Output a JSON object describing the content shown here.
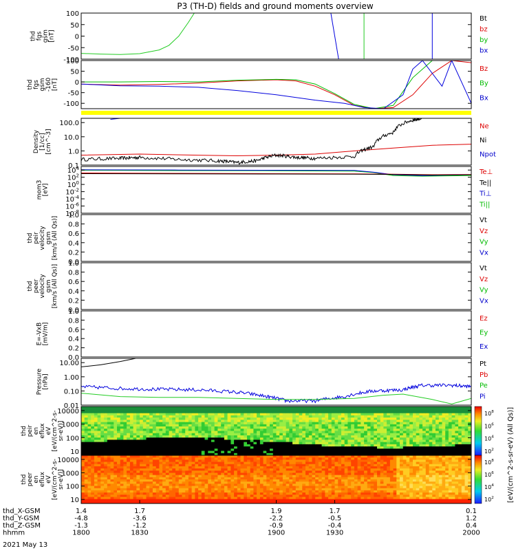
{
  "page": {
    "title": "P3 (TH-D) fields and ground moments overview",
    "date_label": "2021 May 13"
  },
  "chart_data": [
    {
      "type": "line",
      "ylabel": [
        "thd",
        "fgs",
        "gsm",
        "[nT]"
      ],
      "ylim": [
        -100,
        100
      ],
      "yticks": [
        "100",
        "50",
        "0",
        "-50",
        "-100"
      ],
      "legend": [
        {
          "name": "Bt",
          "color": "#000000"
        },
        {
          "name": "bz",
          "color": "#dd0000"
        },
        {
          "name": "by",
          "color": "#00bb00"
        },
        {
          "name": "bx",
          "color": "#0000cc"
        }
      ],
      "series": [
        {
          "name": "by",
          "color": "#22cc22",
          "points": [
            [
              1800,
              -75
            ],
            [
              1810,
              -78
            ],
            [
              1820,
              -80
            ],
            [
              1830,
              -76
            ],
            [
              1840,
              -60
            ],
            [
              1845,
              -40
            ],
            [
              1850,
              0
            ],
            [
              1855,
              60
            ],
            [
              1858,
              100
            ],
            [
              1945,
              100
            ],
            [
              1945,
              -100
            ]
          ]
        },
        {
          "name": "bx",
          "color": "#0000dd",
          "points": [
            [
              1928,
              100
            ],
            [
              1932,
              -100
            ],
            [
              1980,
              -100
            ],
            [
              1980,
              100
            ]
          ]
        }
      ]
    },
    {
      "type": "line",
      "ylabel": [
        "thd",
        "fgs",
        "gsm",
        "-160",
        "[nT]"
      ],
      "ylim": [
        -125,
        100
      ],
      "yticks": [
        "100",
        "50",
        "0",
        "-50",
        "-100"
      ],
      "legend": [
        {
          "name": "Bz",
          "color": "#dd0000"
        },
        {
          "name": "By",
          "color": "#00bb00"
        },
        {
          "name": "Bx",
          "color": "#0000cc"
        }
      ],
      "series": [
        {
          "name": "Bz",
          "color": "#dd0000",
          "points": [
            [
              1800,
              -10
            ],
            [
              1820,
              -15
            ],
            [
              1840,
              -12
            ],
            [
              1860,
              -5
            ],
            [
              1880,
              5
            ],
            [
              1900,
              10
            ],
            [
              1910,
              5
            ],
            [
              1920,
              -20
            ],
            [
              1930,
              -60
            ],
            [
              1940,
              -110
            ],
            [
              1950,
              -125
            ],
            [
              1960,
              -120
            ],
            [
              1970,
              -60
            ],
            [
              1980,
              40
            ],
            [
              1990,
              100
            ],
            [
              2000,
              90
            ]
          ]
        },
        {
          "name": "By",
          "color": "#00bb00",
          "points": [
            [
              1800,
              0
            ],
            [
              1820,
              0
            ],
            [
              1840,
              2
            ],
            [
              1860,
              0
            ],
            [
              1880,
              8
            ],
            [
              1900,
              12
            ],
            [
              1910,
              10
            ],
            [
              1920,
              -10
            ],
            [
              1930,
              -55
            ],
            [
              1940,
              -105
            ],
            [
              1950,
              -125
            ],
            [
              1960,
              -110
            ],
            [
              1970,
              20
            ],
            [
              1980,
              100
            ],
            [
              1990,
              100
            ],
            [
              2000,
              100
            ]
          ]
        },
        {
          "name": "Bx",
          "color": "#0000dd",
          "points": [
            [
              1800,
              -10
            ],
            [
              1820,
              -18
            ],
            [
              1840,
              -20
            ],
            [
              1860,
              -25
            ],
            [
              1880,
              -40
            ],
            [
              1900,
              -60
            ],
            [
              1920,
              -85
            ],
            [
              1935,
              -100
            ],
            [
              1945,
              -120
            ],
            [
              1955,
              -125
            ],
            [
              1965,
              -60
            ],
            [
              1970,
              60
            ],
            [
              1975,
              100
            ],
            [
              1985,
              -20
            ],
            [
              1990,
              100
            ],
            [
              2000,
              -100
            ]
          ]
        }
      ],
      "flag_bar_color": "#ffff00"
    },
    {
      "type": "line",
      "ylabel": [
        "Density",
        "[1/cc]",
        "[cm^-3]"
      ],
      "scale": "log",
      "ylim": [
        0.1,
        200
      ],
      "yticks": [
        "100.0",
        "10.0",
        "1.0",
        "0.1"
      ],
      "legend": [
        {
          "name": "Ne",
          "color": "#dd0000"
        },
        {
          "name": "Ni",
          "color": "#000000"
        },
        {
          "name": "Npot",
          "color": "#0000cc"
        }
      ],
      "series": [
        {
          "name": "Ne",
          "color": "#dd0000",
          "points": [
            [
              1800,
              0.5
            ],
            [
              1830,
              0.6
            ],
            [
              1860,
              0.5
            ],
            [
              1880,
              0.45
            ],
            [
              1900,
              0.5
            ],
            [
              1920,
              0.6
            ],
            [
              1940,
              1.0
            ],
            [
              1960,
              1.6
            ],
            [
              1980,
              2.5
            ],
            [
              2000,
              3.0
            ]
          ]
        },
        {
          "name": "Ni",
          "color": "#000000",
          "noisy": true,
          "points": [
            [
              1800,
              0.25
            ],
            [
              1820,
              0.3
            ],
            [
              1830,
              0.35
            ],
            [
              1850,
              0.25
            ],
            [
              1870,
              0.2
            ],
            [
              1880,
              0.15
            ],
            [
              1890,
              0.2
            ],
            [
              1900,
              0.5
            ],
            [
              1910,
              0.35
            ],
            [
              1920,
              0.3
            ],
            [
              1940,
              0.4
            ],
            [
              1950,
              2.0
            ],
            [
              1960,
              20
            ],
            [
              1970,
              150
            ],
            [
              1975,
              200
            ]
          ]
        },
        {
          "name": "Npot",
          "color": "#0000dd",
          "points": [
            [
              1815,
              170
            ],
            [
              1820,
              200
            ]
          ]
        }
      ]
    },
    {
      "type": "line",
      "ylabel": [
        "mom3",
        "[eV]"
      ],
      "scale": "log",
      "ylim": [
        1e-08,
        100000.0
      ],
      "yticks": [
        "10^4",
        "10^2",
        "10^0",
        "10^-2",
        "10^-4",
        "10^-6",
        "10^-8"
      ],
      "legend": [
        {
          "name": "Te⊥",
          "color": "#dd0000"
        },
        {
          "name": "Te||",
          "color": "#000000"
        },
        {
          "name": "Ti⊥",
          "color": "#0000cc"
        },
        {
          "name": "Ti||",
          "color": "#00bb00"
        }
      ],
      "series": [
        {
          "name": "Ti||",
          "color": "#00bb00",
          "points": [
            [
              1800,
              9000
            ],
            [
              1850,
              7000
            ],
            [
              1900,
              6500
            ],
            [
              1940,
              5000
            ],
            [
              1950,
              2000
            ],
            [
              1960,
              300
            ],
            [
              1975,
              200
            ],
            [
              2000,
              300
            ]
          ]
        },
        {
          "name": "Ti⊥",
          "color": "#0000dd",
          "points": [
            [
              1800,
              12000
            ],
            [
              1850,
              10000
            ],
            [
              1900,
              9000
            ],
            [
              1940,
              8000
            ],
            [
              1950,
              2500
            ],
            [
              1960,
              500
            ],
            [
              1975,
              300
            ],
            [
              2000,
              500
            ]
          ]
        },
        {
          "name": "Te⊥",
          "color": "#dd0000",
          "points": [
            [
              1800,
              1500
            ],
            [
              1850,
              1200
            ],
            [
              1900,
              1000
            ],
            [
              1940,
              900
            ],
            [
              1960,
              700
            ],
            [
              1980,
              500
            ],
            [
              2000,
              600
            ]
          ]
        },
        {
          "name": "Te||",
          "color": "#000000",
          "points": [
            [
              1800,
              1000
            ],
            [
              1850,
              900
            ],
            [
              1900,
              800
            ],
            [
              1940,
              700
            ],
            [
              1960,
              600
            ],
            [
              1980,
              400
            ],
            [
              2000,
              500
            ]
          ]
        }
      ]
    },
    {
      "type": "line",
      "ylabel": [
        "thd",
        "peir",
        "velocity",
        "gsm",
        "[km/s (All Qs)]"
      ],
      "ylim": [
        0,
        1
      ],
      "yticks": [
        "1.0",
        "0.8",
        "0.6",
        "0.4",
        "0.2",
        "0.0"
      ],
      "legend": [
        {
          "name": "Vt",
          "color": "#000000"
        },
        {
          "name": "Vz",
          "color": "#dd0000"
        },
        {
          "name": "Vy",
          "color": "#00bb00"
        },
        {
          "name": "Vx",
          "color": "#0000cc"
        }
      ],
      "series": []
    },
    {
      "type": "line",
      "ylabel": [
        "thd",
        "peer",
        "velocity",
        "gsm",
        "[km/s (All Qs)]"
      ],
      "ylim": [
        0,
        1
      ],
      "yticks": [
        "1.0",
        "0.8",
        "0.6",
        "0.4",
        "0.2",
        "0.0"
      ],
      "legend": [
        {
          "name": "Vt",
          "color": "#000000"
        },
        {
          "name": "Vz",
          "color": "#dd0000"
        },
        {
          "name": "Vy",
          "color": "#00bb00"
        },
        {
          "name": "Vx",
          "color": "#0000cc"
        }
      ],
      "series": []
    },
    {
      "type": "line",
      "ylabel": [
        "E=-VxB",
        "[mV/m]"
      ],
      "ylim": [
        0,
        1
      ],
      "yticks": [
        "1.0",
        "0.8",
        "0.6",
        "0.4",
        "0.2",
        "0.0"
      ],
      "legend": [
        {
          "name": "Ez",
          "color": "#dd0000"
        },
        {
          "name": "Ey",
          "color": "#00bb00"
        },
        {
          "name": "Ex",
          "color": "#0000cc"
        }
      ],
      "series": []
    },
    {
      "type": "line",
      "ylabel": [
        "Pressure",
        "[nPa]"
      ],
      "scale": "log",
      "ylim": [
        0.01,
        20
      ],
      "yticks": [
        "10.00",
        "1.00",
        "0.10",
        "0.01"
      ],
      "legend": [
        {
          "name": "Pt",
          "color": "#000000"
        },
        {
          "name": "Pb",
          "color": "#dd0000"
        },
        {
          "name": "Pe",
          "color": "#00bb00"
        },
        {
          "name": "Pi",
          "color": "#0000cc"
        }
      ],
      "series": [
        {
          "name": "Pt",
          "color": "#000000",
          "points": [
            [
              1800,
              5
            ],
            [
              1810,
              7
            ],
            [
              1820,
              12
            ],
            [
              1828,
              20
            ]
          ]
        },
        {
          "name": "Pi",
          "color": "#0000dd",
          "noisy": true,
          "points": [
            [
              1800,
              0.2
            ],
            [
              1820,
              0.15
            ],
            [
              1840,
              0.13
            ],
            [
              1860,
              0.12
            ],
            [
              1880,
              0.08
            ],
            [
              1895,
              0.04
            ],
            [
              1905,
              0.02
            ],
            [
              1920,
              0.02
            ],
            [
              1935,
              0.04
            ],
            [
              1950,
              0.1
            ],
            [
              1965,
              0.12
            ],
            [
              1975,
              0.25
            ],
            [
              1990,
              0.25
            ],
            [
              2000,
              0.2
            ]
          ]
        },
        {
          "name": "Pe",
          "color": "#22cc22",
          "points": [
            [
              1800,
              0.07
            ],
            [
              1820,
              0.04
            ],
            [
              1840,
              0.035
            ],
            [
              1860,
              0.035
            ],
            [
              1880,
              0.03
            ],
            [
              1900,
              0.025
            ],
            [
              1920,
              0.025
            ],
            [
              1940,
              0.03
            ],
            [
              1955,
              0.05
            ],
            [
              1965,
              0.06
            ],
            [
              1980,
              0.025
            ],
            [
              1990,
              0.012
            ],
            [
              2000,
              0.03
            ]
          ]
        }
      ]
    },
    {
      "type": "heatmap",
      "ylabel": [
        "thd",
        "peir",
        "en",
        "eflux",
        "eV",
        "[eV/(cm^2-s-",
        "sr-eV)]"
      ],
      "scale": "log",
      "ylim": [
        5,
        20000
      ],
      "yticks": [
        "10000",
        "1000",
        "100",
        "10"
      ],
      "zlabel": "[eV/(cm^2-s-sr-eV) (All Qs)]",
      "zticks": [
        "10^8",
        "10^6",
        "10^4",
        "10^2"
      ]
    },
    {
      "type": "heatmap",
      "ylabel": [
        "thd",
        "peer",
        "en",
        "eflux",
        "eV",
        "[eV/(cm^2-s-",
        "sr-eV)]"
      ],
      "scale": "log",
      "ylim": [
        5,
        20000
      ],
      "yticks": [
        "10000",
        "1000",
        "100",
        "10"
      ],
      "zlabel": "[eV/(cm^2-s-sr-eV)]",
      "zticks": [
        "10^8",
        "10^6",
        "10^4",
        "10^2"
      ]
    }
  ],
  "x_axis": {
    "range": [
      1800,
      2000
    ],
    "tick_times": [
      1800,
      1830,
      1900,
      1930,
      2000
    ],
    "rows": [
      {
        "label": "thd_X-GSM",
        "values": [
          "1.4",
          "1.7",
          "1.9",
          "1.7",
          "0.1"
        ]
      },
      {
        "label": "thd_Y-GSM",
        "values": [
          "-4.8",
          "-3.6",
          "-2.2",
          "-0.5",
          "1.2"
        ]
      },
      {
        "label": "thd_Z-GSM",
        "values": [
          "-1.3",
          "-1.2",
          "-0.9",
          "-0.4",
          "0.4"
        ]
      },
      {
        "label": "hhmm",
        "values": [
          "1800",
          "1830",
          "1900",
          "1930",
          "2000"
        ]
      }
    ]
  }
}
